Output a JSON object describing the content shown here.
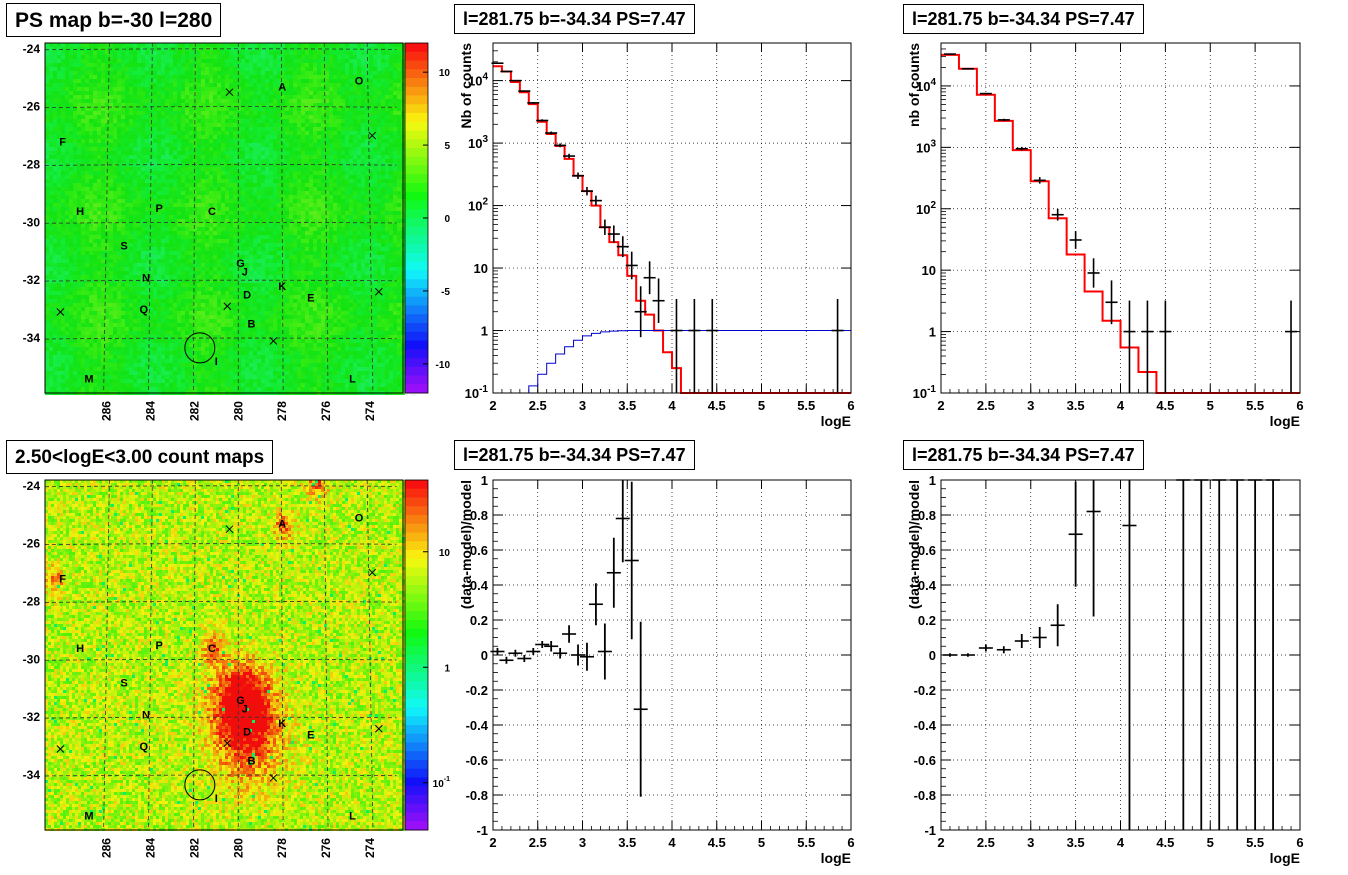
{
  "panels": {
    "map1_title": "PS map b=-30 l=280",
    "map2_title": "2.50<logE<3.00 count maps",
    "p2_title": "l=281.75 b=-34.34 PS=7.47",
    "p3_title": "l=281.75 b=-34.34 PS=7.47",
    "p5_title": "l=281.75 b=-34.34 PS=7.47",
    "p6_title": "l=281.75 b=-34.34 PS=7.47"
  },
  "maps": {
    "ylabels": [
      "-24",
      "-26",
      "-28",
      "-30",
      "-32",
      "-34"
    ],
    "xlabels": [
      "286",
      "284",
      "282",
      "280",
      "278",
      "276",
      "274"
    ],
    "source_labels": [
      {
        "t": "R",
        "l": 268,
        "b": -24.1
      },
      {
        "t": "A",
        "l": 278.0,
        "b": -25.3
      },
      {
        "t": "O",
        "l": 274.5,
        "b": -25.1
      },
      {
        "t": "F",
        "l": 288.0,
        "b": -27.2
      },
      {
        "t": "H",
        "l": 287.2,
        "b": -29.6
      },
      {
        "t": "P",
        "l": 283.6,
        "b": -29.5
      },
      {
        "t": "C",
        "l": 281.2,
        "b": -29.6
      },
      {
        "t": "S",
        "l": 285.2,
        "b": -30.8
      },
      {
        "t": "G",
        "l": 279.9,
        "b": -31.4
      },
      {
        "t": "J",
        "l": 279.7,
        "b": -31.7
      },
      {
        "t": "N",
        "l": 284.2,
        "b": -31.9
      },
      {
        "t": "K",
        "l": 278.0,
        "b": -32.2
      },
      {
        "t": "D",
        "l": 279.6,
        "b": -32.5
      },
      {
        "t": "E",
        "l": 276.7,
        "b": -32.6
      },
      {
        "t": "Q",
        "l": 284.3,
        "b": -33.0
      },
      {
        "t": "B",
        "l": 279.4,
        "b": -33.5
      },
      {
        "t": "I",
        "l": 281.0,
        "b": -34.8
      },
      {
        "t": "M",
        "l": 286.8,
        "b": -35.4
      },
      {
        "t": "L",
        "l": 274.8,
        "b": -35.4
      }
    ],
    "markers": [
      {
        "l": 280.4,
        "b": -25.5
      },
      {
        "l": 273.9,
        "b": -27.0
      },
      {
        "l": 280.5,
        "b": -32.9
      },
      {
        "l": 278.4,
        "b": -34.1
      },
      {
        "l": 273.6,
        "b": -32.4
      },
      {
        "l": 288.1,
        "b": -33.1
      }
    ],
    "circle": {
      "l": 281.75,
      "b": -34.34
    },
    "map1_colorbar": {
      "min": -12,
      "max": 12,
      "ticks": [
        "10",
        "5",
        "0",
        "-5",
        "-10"
      ]
    },
    "map2_colorbar": {
      "scale": "log",
      "ticks": [
        "10",
        "1",
        "10^-1"
      ]
    }
  },
  "chart_data": [
    {
      "type": "line",
      "panel": "p2",
      "title": "l=281.75 b=-34.34 PS=7.47",
      "xlabel": "logE",
      "ylabel": "Nb of counts",
      "xlim": [
        2,
        6
      ],
      "ylim": [
        0.1,
        40000
      ],
      "yscale": "log",
      "grid": true,
      "xticks": [
        "2",
        "2.5",
        "3",
        "3.5",
        "4",
        "4.5",
        "5",
        "5.5",
        "6"
      ],
      "yticks": [
        "10^-1",
        "1",
        "10",
        "10^2",
        "10^3",
        "10^4"
      ],
      "series": [
        {
          "kind": "step",
          "color": "#ff0000",
          "edges": [
            2,
            2.1,
            2.2,
            2.3,
            2.4,
            2.5,
            2.6,
            2.7,
            2.8,
            2.9,
            3,
            3.1,
            3.2,
            3.3,
            3.4,
            3.5,
            3.6,
            3.7,
            3.8,
            3.9,
            4,
            4.1,
            4.2,
            4.3,
            4.4,
            4.5,
            5,
            5.5,
            6
          ],
          "values": [
            17000,
            14000,
            9500,
            6500,
            4200,
            2200,
            1400,
            900,
            560,
            300,
            170,
            100,
            45,
            26,
            16,
            7.5,
            3,
            1.8,
            1,
            0.45,
            0.25,
            0.1,
            0.1,
            0.1,
            0.1,
            0.1,
            0.1,
            0.1
          ]
        },
        {
          "kind": "step",
          "color": "#0000cc",
          "edges": [
            2,
            2.1,
            2.2,
            2.3,
            2.4,
            2.5,
            2.6,
            2.7,
            2.8,
            2.9,
            3,
            3.1,
            3.2,
            3.3,
            3.4,
            3.5,
            3.6,
            3.7,
            3.8,
            3.9,
            4,
            4.5,
            5,
            5.5,
            6
          ],
          "values": [
            0.06,
            0.07,
            0.08,
            0.1,
            0.13,
            0.2,
            0.3,
            0.42,
            0.55,
            0.7,
            0.82,
            0.9,
            0.95,
            0.98,
            0.99,
            1,
            1,
            1,
            1,
            1,
            1,
            1,
            1,
            1
          ]
        },
        {
          "kind": "points",
          "color": "#000000",
          "points": [
            {
              "x": 2.05,
              "y": 19000
            },
            {
              "x": 2.15,
              "y": 14000
            },
            {
              "x": 2.25,
              "y": 10000
            },
            {
              "x": 2.35,
              "y": 6800
            },
            {
              "x": 2.45,
              "y": 4400
            },
            {
              "x": 2.55,
              "y": 2300
            },
            {
              "x": 2.65,
              "y": 1450
            },
            {
              "x": 2.75,
              "y": 920
            },
            {
              "x": 2.85,
              "y": 620
            },
            {
              "x": 2.95,
              "y": 300
            },
            {
              "x": 3.05,
              "y": 170
            },
            {
              "x": 3.15,
              "y": 120
            },
            {
              "x": 3.25,
              "y": 45
            },
            {
              "x": 3.35,
              "y": 35
            },
            {
              "x": 3.45,
              "y": 22
            },
            {
              "x": 3.55,
              "y": 11
            },
            {
              "x": 3.65,
              "y": 2
            },
            {
              "x": 3.75,
              "y": 7
            },
            {
              "x": 3.85,
              "y": 3
            },
            {
              "x": 4.05,
              "y": 1
            },
            {
              "x": 4.25,
              "y": 1
            },
            {
              "x": 4.45,
              "y": 1
            },
            {
              "x": 5.85,
              "y": 1
            }
          ]
        }
      ]
    },
    {
      "type": "line",
      "panel": "p3",
      "title": "l=281.75 b=-34.34 PS=7.47",
      "xlabel": "logE",
      "ylabel": "nb of counts",
      "xlim": [
        2,
        6
      ],
      "ylim": [
        0.1,
        50000
      ],
      "yscale": "log",
      "grid": true,
      "xticks": [
        "2",
        "2.5",
        "3",
        "3.5",
        "4",
        "4.5",
        "5",
        "5.5",
        "6"
      ],
      "yticks": [
        "10^-1",
        "1",
        "10",
        "10^2",
        "10^3",
        "10^4"
      ],
      "series": [
        {
          "kind": "step",
          "color": "#ff0000",
          "edges": [
            2,
            2.2,
            2.4,
            2.6,
            2.8,
            3,
            3.2,
            3.4,
            3.6,
            3.8,
            4,
            4.2,
            4.4,
            4.6,
            5,
            5.5,
            6
          ],
          "values": [
            32000,
            19000,
            7200,
            2700,
            900,
            280,
            70,
            18,
            4.5,
            1.5,
            0.55,
            0.22,
            0.1,
            0.1,
            0.1,
            0.1
          ]
        },
        {
          "kind": "points",
          "color": "#000000",
          "points": [
            {
              "x": 2.1,
              "y": 33000
            },
            {
              "x": 2.3,
              "y": 19000
            },
            {
              "x": 2.5,
              "y": 7500
            },
            {
              "x": 2.7,
              "y": 2800
            },
            {
              "x": 2.9,
              "y": 950
            },
            {
              "x": 3.1,
              "y": 290
            },
            {
              "x": 3.3,
              "y": 80
            },
            {
              "x": 3.5,
              "y": 31
            },
            {
              "x": 3.7,
              "y": 9
            },
            {
              "x": 3.9,
              "y": 3
            },
            {
              "x": 4.1,
              "y": 1
            },
            {
              "x": 4.3,
              "y": 1
            },
            {
              "x": 4.5,
              "y": 1
            },
            {
              "x": 5.9,
              "y": 1
            }
          ]
        }
      ]
    },
    {
      "type": "scatter",
      "panel": "p5",
      "title": "l=281.75 b=-34.34 PS=7.47",
      "xlabel": "logE",
      "ylabel": "(data-model)/model",
      "xlim": [
        2,
        6
      ],
      "ylim": [
        -1,
        1
      ],
      "grid": true,
      "xticks": [
        "2",
        "2.5",
        "3",
        "3.5",
        "4",
        "4.5",
        "5",
        "5.5",
        "6"
      ],
      "yticks": [
        "-1",
        "-0.8",
        "-0.6",
        "-0.4",
        "-0.2",
        "0",
        "0.2",
        "0.4",
        "0.6",
        "0.8",
        "1"
      ],
      "points": [
        {
          "x": 2.05,
          "y": 0.02,
          "err": 0.02
        },
        {
          "x": 2.15,
          "y": -0.03,
          "err": 0.02
        },
        {
          "x": 2.25,
          "y": 0.01,
          "err": 0.02
        },
        {
          "x": 2.35,
          "y": -0.02,
          "err": 0.02
        },
        {
          "x": 2.45,
          "y": 0.02,
          "err": 0.02
        },
        {
          "x": 2.55,
          "y": 0.06,
          "err": 0.02
        },
        {
          "x": 2.65,
          "y": 0.05,
          "err": 0.03
        },
        {
          "x": 2.75,
          "y": 0.01,
          "err": 0.03
        },
        {
          "x": 2.85,
          "y": 0.12,
          "err": 0.05
        },
        {
          "x": 2.95,
          "y": 0.0,
          "err": 0.06
        },
        {
          "x": 3.05,
          "y": -0.01,
          "err": 0.08
        },
        {
          "x": 3.15,
          "y": 0.29,
          "err": 0.12
        },
        {
          "x": 3.25,
          "y": 0.02,
          "err": 0.16
        },
        {
          "x": 3.35,
          "y": 0.47,
          "err": 0.2
        },
        {
          "x": 3.45,
          "y": 0.78,
          "err": 0.25
        },
        {
          "x": 3.55,
          "y": 0.54,
          "err": 0.45
        },
        {
          "x": 3.65,
          "y": -0.31,
          "err": 0.5
        }
      ]
    },
    {
      "type": "scatter",
      "panel": "p6",
      "title": "l=281.75 b=-34.34 PS=7.47",
      "xlabel": "logE",
      "ylabel": "(data-model)/model",
      "xlim": [
        2,
        6
      ],
      "ylim": [
        -1,
        1
      ],
      "grid": true,
      "xticks": [
        "2",
        "2.5",
        "3",
        "3.5",
        "4",
        "4.5",
        "5",
        "5.5",
        "6"
      ],
      "yticks": [
        "-1",
        "-0.8",
        "-0.6",
        "-0.4",
        "-0.2",
        "0",
        "0.2",
        "0.4",
        "0.6",
        "0.8",
        "1"
      ],
      "points": [
        {
          "x": 2.1,
          "y": 0.0,
          "err": 0.01
        },
        {
          "x": 2.3,
          "y": 0.0,
          "err": 0.01
        },
        {
          "x": 2.5,
          "y": 0.04,
          "err": 0.02
        },
        {
          "x": 2.7,
          "y": 0.03,
          "err": 0.02
        },
        {
          "x": 2.9,
          "y": 0.08,
          "err": 0.04
        },
        {
          "x": 3.1,
          "y": 0.1,
          "err": 0.06
        },
        {
          "x": 3.3,
          "y": 0.17,
          "err": 0.12
        },
        {
          "x": 3.5,
          "y": 0.69,
          "err": 0.3
        },
        {
          "x": 3.7,
          "y": 0.82,
          "err": 0.6
        },
        {
          "x": 4.1,
          "y": 0.74,
          "err": 2
        },
        {
          "x": 4.7,
          "y": 1.0,
          "err": 2
        },
        {
          "x": 4.9,
          "y": 1.0,
          "err": 2
        },
        {
          "x": 5.1,
          "y": 1.0,
          "err": 2
        },
        {
          "x": 5.3,
          "y": 1.0,
          "err": 2
        },
        {
          "x": 5.5,
          "y": 1.0,
          "err": 2
        },
        {
          "x": 5.7,
          "y": 1.0,
          "err": 2
        }
      ]
    }
  ]
}
